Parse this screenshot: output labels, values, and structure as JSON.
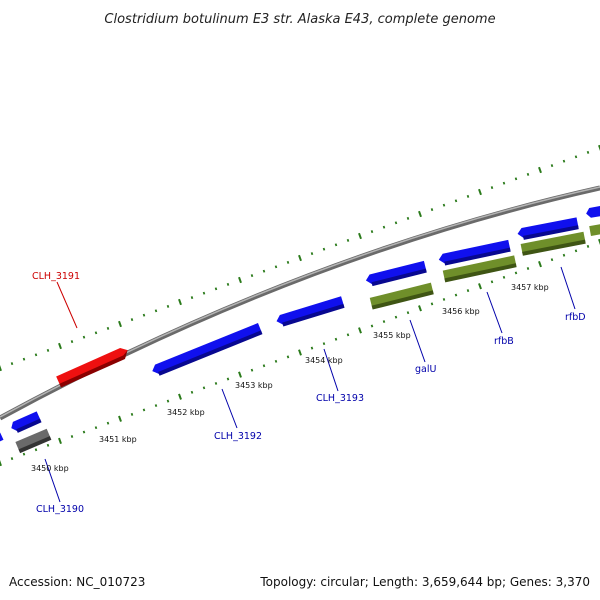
{
  "map": {
    "title": "Clostridium botulinum E3 str. Alaska E43, complete genome",
    "accession_label": "Accession: NC_010723",
    "summary_label": "Topology: circular; Length: 3,659,644 bp; Genes: 3,370"
  },
  "colors": {
    "backbone": "#888888",
    "gene_forward": "#1010ee",
    "gene_highlight": "#ee1010",
    "gene_pseudo": "#666666",
    "gene_named": "#6f8f2a",
    "gene_label_blue": "#0000aa",
    "gene_label_red": "#cc0000",
    "tick": "#2a7a1a"
  },
  "kbp_labels": [
    "3450 kbp",
    "3451 kbp",
    "3452 kbp",
    "3453 kbp",
    "3454 kbp",
    "3455 kbp",
    "3456 kbp",
    "3457 kbp"
  ],
  "gene_labels": [
    {
      "text": "CLH_3190",
      "color": "blue"
    },
    {
      "text": "CLH_3191",
      "color": "red"
    },
    {
      "text": "CLH_3192",
      "color": "blue"
    },
    {
      "text": "CLH_3193",
      "color": "blue"
    },
    {
      "text": "galU",
      "color": "blue"
    },
    {
      "text": "rfbB",
      "color": "blue"
    },
    {
      "text": "rfbD",
      "color": "blue"
    }
  ]
}
